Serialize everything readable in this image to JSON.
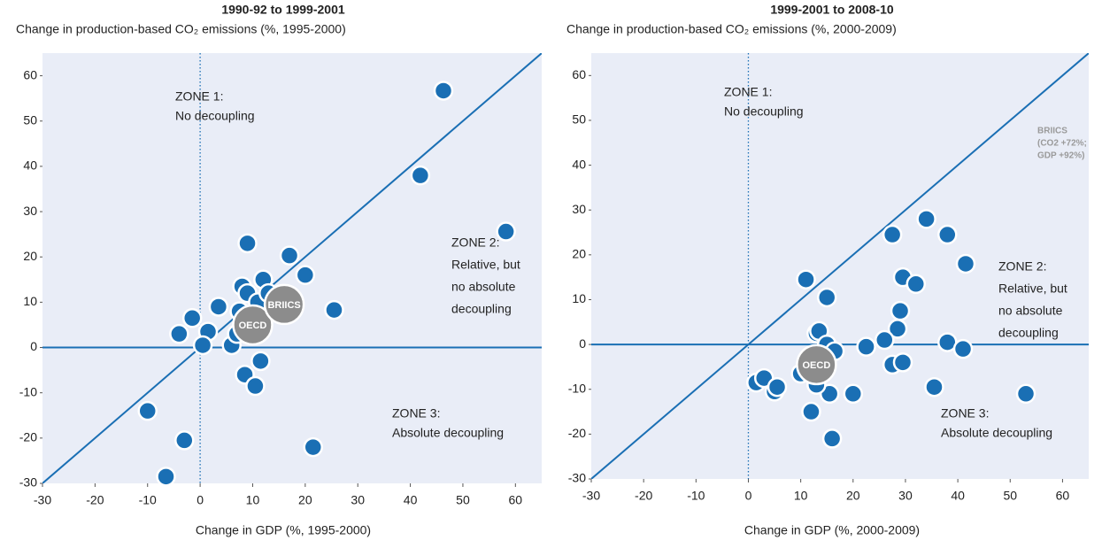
{
  "chart_data": [
    {
      "type": "scatter",
      "title": "1990-92 to 1999-2001",
      "ylabel": "Change in production-based CO₂ emissions (%, 1995-2000)",
      "xlabel": "Change in GDP (%, 1995-2000)",
      "xlim": [
        -30,
        65
      ],
      "ylim": [
        -30,
        65
      ],
      "xticks": [
        -30,
        -20,
        -10,
        0,
        10,
        20,
        30,
        40,
        50,
        60
      ],
      "yticks": [
        -30,
        -20,
        -10,
        0,
        10,
        20,
        30,
        40,
        50,
        60
      ],
      "series": [
        {
          "color": "#1a6fb4",
          "x": [
            46.3,
            41.9,
            58.2,
            9,
            17,
            20,
            12,
            8,
            25.5,
            3.5,
            -1.5,
            1.5,
            -4,
            0.5,
            6,
            7,
            7.5,
            9,
            11,
            11.5,
            8.5,
            10.5,
            -10,
            -3,
            -6.5,
            21.5,
            13
          ],
          "y": [
            56.7,
            38,
            25.6,
            23,
            20.3,
            16,
            15,
            13.5,
            8.3,
            9,
            6.5,
            3.5,
            3,
            0.5,
            0.5,
            3,
            8,
            12,
            10,
            -3,
            -6,
            -8.5,
            -14,
            -20.5,
            -28.5,
            -22,
            12
          ]
        },
        {
          "color": "#8c8c8c",
          "labels": [
            "OECD",
            "BRIICS"
          ],
          "x": [
            10,
            16
          ],
          "y": [
            5,
            9.5
          ]
        }
      ],
      "annotations": [
        [
          "ZONE 1:",
          "No decoupling"
        ],
        [
          "ZONE 2:",
          "Relative, but",
          "no absolute",
          "decoupling"
        ],
        [
          "ZONE 3:",
          "Absolute decoupling"
        ]
      ]
    },
    {
      "type": "scatter",
      "title": "1999-2001 to 2008-10",
      "ylabel": "Change in production-based CO₂ emissions (%, 2000-2009)",
      "xlabel": "Change in GDP (%, 2000-2009)",
      "xlim": [
        -30,
        65
      ],
      "ylim": [
        -30,
        65
      ],
      "xticks": [
        -30,
        -20,
        -10,
        0,
        10,
        20,
        30,
        40,
        50,
        60
      ],
      "yticks": [
        -30,
        -20,
        -10,
        0,
        10,
        20,
        30,
        40,
        50,
        60
      ],
      "series": [
        {
          "color": "#1a6fb4",
          "x": [
            11,
            15,
            27.5,
            34,
            38,
            41.5,
            29.5,
            32,
            29,
            28.5,
            26,
            22.5,
            38,
            41,
            27.5,
            29.5,
            35.5,
            53,
            20,
            15.5,
            16,
            12,
            13,
            13.5,
            15,
            16.5,
            10,
            13,
            1.5,
            3,
            5,
            5.5
          ],
          "y": [
            14.5,
            10.5,
            24.5,
            28,
            24.5,
            18,
            15,
            13.5,
            7.5,
            3.5,
            1,
            -0.5,
            0.5,
            -1,
            -4.5,
            -4,
            -9.5,
            -11,
            -11,
            -11,
            -21,
            -15,
            2.5,
            3,
            0,
            -1.5,
            -6.5,
            -9,
            -8.5,
            -7.5,
            -10.5,
            -9.5
          ]
        },
        {
          "color": "#8c8c8c",
          "labels": [
            "OECD"
          ],
          "x": [
            13
          ],
          "y": [
            -4.5
          ]
        }
      ],
      "annotations": [
        [
          "ZONE 1:",
          "No decoupling"
        ],
        [
          "ZONE 2:",
          "Relative, but",
          "no absolute",
          "decoupling"
        ],
        [
          "ZONE 3:",
          "Absolute decoupling"
        ],
        [
          "BRIICS",
          "(CO2 +72%;",
          "GDP +92%)"
        ]
      ]
    }
  ]
}
